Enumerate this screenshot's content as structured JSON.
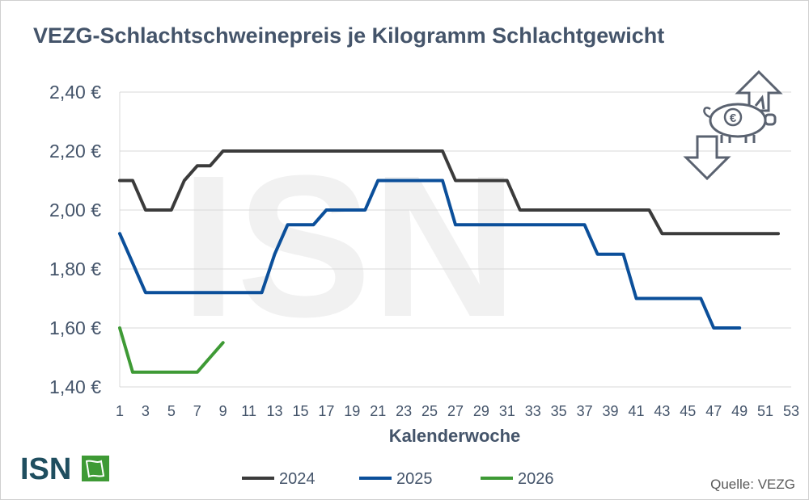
{
  "title": "VEZG-Schlachtschweinepreis je Kilogramm Schlachtgewicht",
  "source": "Quelle: VEZG",
  "logo_text": "ISN",
  "watermark_text": "ISN",
  "icon": "pig-euro-price-up-down-icon",
  "colors": {
    "2024": "#3b3b3b",
    "2025": "#0b4f9a",
    "2026": "#3e9a35",
    "grid": "#d9d9d9",
    "text": "#44546a",
    "logo_green": "#3e9a35",
    "logo_text": "#1f4e5f"
  },
  "chart_data": {
    "type": "line",
    "title": "VEZG-Schlachtschweinepreis je Kilogramm Schlachtgewicht",
    "xlabel": "Kalenderwoche",
    "ylabel": "",
    "ylim": [
      1.4,
      2.4
    ],
    "xlim": [
      1,
      53
    ],
    "yticks": [
      1.4,
      1.6,
      1.8,
      2.0,
      2.2,
      2.4
    ],
    "ytick_labels": [
      "1,40 €",
      "1,60 €",
      "1,80 €",
      "2,00 €",
      "2,20 €",
      "2,40 €"
    ],
    "xticks": [
      1,
      3,
      5,
      7,
      9,
      11,
      13,
      15,
      17,
      19,
      21,
      23,
      25,
      27,
      29,
      31,
      33,
      35,
      37,
      39,
      41,
      43,
      45,
      47,
      49,
      51,
      53
    ],
    "grid": true,
    "legend_position": "bottom",
    "series": [
      {
        "name": "2024",
        "color": "#3b3b3b",
        "x": [
          1,
          2,
          3,
          4,
          5,
          6,
          7,
          8,
          9,
          10,
          11,
          12,
          13,
          14,
          15,
          16,
          17,
          18,
          19,
          20,
          21,
          22,
          23,
          24,
          25,
          26,
          27,
          28,
          29,
          30,
          31,
          32,
          33,
          34,
          35,
          36,
          37,
          38,
          39,
          40,
          41,
          42,
          43,
          44,
          45,
          46,
          47,
          48,
          49,
          50,
          51,
          52
        ],
        "values": [
          2.1,
          2.1,
          2.0,
          2.0,
          2.0,
          2.1,
          2.15,
          2.15,
          2.2,
          2.2,
          2.2,
          2.2,
          2.2,
          2.2,
          2.2,
          2.2,
          2.2,
          2.2,
          2.2,
          2.2,
          2.2,
          2.2,
          2.2,
          2.2,
          2.2,
          2.2,
          2.1,
          2.1,
          2.1,
          2.1,
          2.1,
          2.0,
          2.0,
          2.0,
          2.0,
          2.0,
          2.0,
          2.0,
          2.0,
          2.0,
          2.0,
          2.0,
          1.92,
          1.92,
          1.92,
          1.92,
          1.92,
          1.92,
          1.92,
          1.92,
          1.92,
          1.92
        ]
      },
      {
        "name": "2025",
        "color": "#0b4f9a",
        "x": [
          1,
          2,
          3,
          4,
          5,
          6,
          7,
          8,
          9,
          10,
          11,
          12,
          13,
          14,
          15,
          16,
          17,
          18,
          19,
          20,
          21,
          22,
          23,
          24,
          25,
          26,
          27,
          28,
          29,
          30,
          31,
          32,
          33,
          34,
          35,
          36,
          37,
          38,
          39,
          40,
          41,
          42,
          43,
          44,
          45,
          46,
          47,
          48,
          49
        ],
        "values": [
          1.92,
          1.82,
          1.72,
          1.72,
          1.72,
          1.72,
          1.72,
          1.72,
          1.72,
          1.72,
          1.72,
          1.72,
          1.85,
          1.95,
          1.95,
          1.95,
          2.0,
          2.0,
          2.0,
          2.0,
          2.1,
          2.1,
          2.1,
          2.1,
          2.1,
          2.1,
          1.95,
          1.95,
          1.95,
          1.95,
          1.95,
          1.95,
          1.95,
          1.95,
          1.95,
          1.95,
          1.95,
          1.85,
          1.85,
          1.85,
          1.7,
          1.7,
          1.7,
          1.7,
          1.7,
          1.7,
          1.6,
          1.6,
          1.6
        ]
      },
      {
        "name": "2026",
        "color": "#3e9a35",
        "x": [
          1,
          2,
          3,
          4,
          5,
          6,
          7,
          8,
          9
        ],
        "values": [
          1.6,
          1.45,
          1.45,
          1.45,
          1.45,
          1.45,
          1.45,
          1.5,
          1.55
        ]
      }
    ]
  }
}
